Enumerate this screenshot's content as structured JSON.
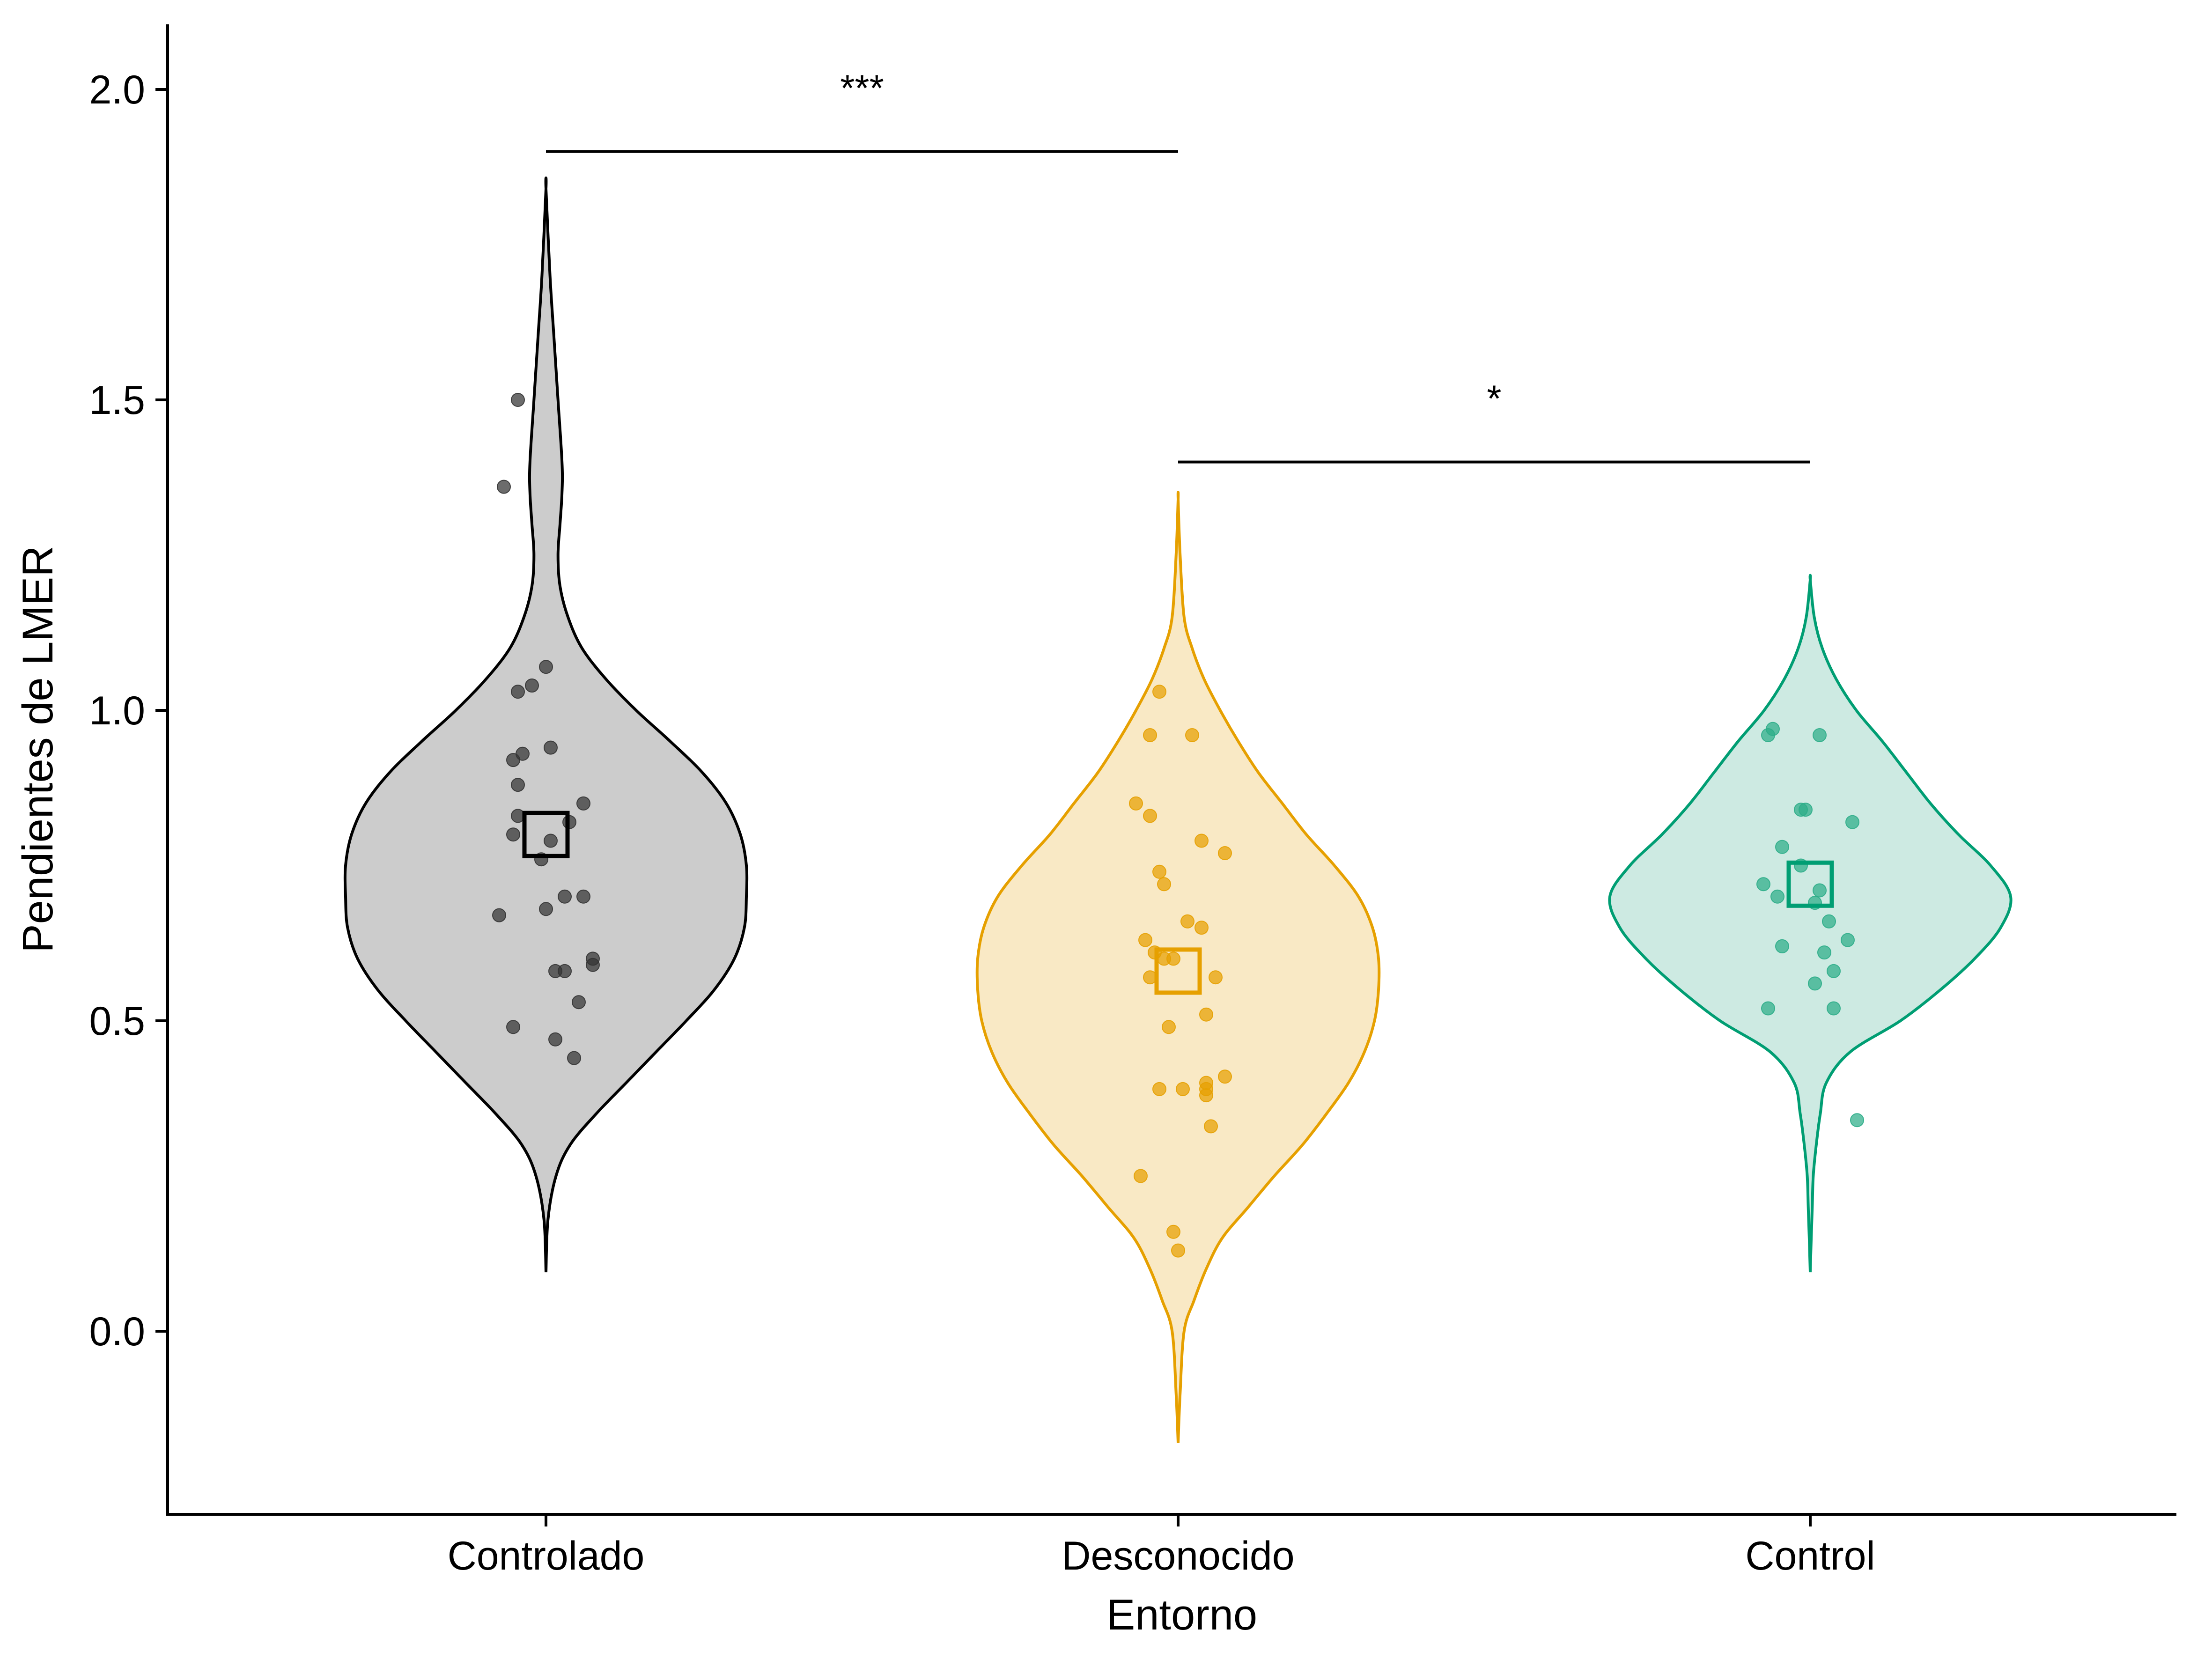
{
  "chart_data": {
    "type": "violin",
    "title": "",
    "xlabel": "Entorno",
    "ylabel": "Pendientes de LMER",
    "ylim": [
      -0.29,
      2.11
    ],
    "yticks": [
      "0.0",
      "0.5",
      "1.0",
      "1.5",
      "2.0"
    ],
    "ytick_values": [
      0.0,
      0.5,
      1.0,
      1.5,
      2.0
    ],
    "grid": false,
    "legend": "none",
    "categories": [
      "Controlado",
      "Desconocido",
      "Control"
    ],
    "series": [
      {
        "category": "Controlado",
        "line_color": "#000000",
        "fill_color": "#cccccc",
        "point_color": "#333333",
        "mean": 0.8,
        "range": [
          0.095,
          1.84
        ],
        "density_profile": [
          [
            0.095,
            0.0
          ],
          [
            0.18,
            0.01
          ],
          [
            0.25,
            0.05
          ],
          [
            0.3,
            0.12
          ],
          [
            0.35,
            0.25
          ],
          [
            0.4,
            0.4
          ],
          [
            0.45,
            0.55
          ],
          [
            0.5,
            0.7
          ],
          [
            0.55,
            0.84
          ],
          [
            0.6,
            0.94
          ],
          [
            0.65,
            0.99
          ],
          [
            0.7,
            1.0
          ],
          [
            0.75,
            1.0
          ],
          [
            0.8,
            0.97
          ],
          [
            0.85,
            0.9
          ],
          [
            0.9,
            0.78
          ],
          [
            0.95,
            0.62
          ],
          [
            1.0,
            0.45
          ],
          [
            1.05,
            0.3
          ],
          [
            1.1,
            0.18
          ],
          [
            1.15,
            0.11
          ],
          [
            1.2,
            0.07
          ],
          [
            1.25,
            0.06
          ],
          [
            1.3,
            0.07
          ],
          [
            1.35,
            0.08
          ],
          [
            1.4,
            0.08
          ],
          [
            1.5,
            0.06
          ],
          [
            1.6,
            0.04
          ],
          [
            1.7,
            0.02
          ],
          [
            1.84,
            0.0
          ]
        ],
        "points": [
          [
            0.49,
            -0.07
          ],
          [
            0.47,
            0.02
          ],
          [
            0.44,
            0.06
          ],
          [
            0.53,
            0.07
          ],
          [
            0.58,
            0.04
          ],
          [
            0.58,
            0.02
          ],
          [
            0.59,
            0.1
          ],
          [
            0.6,
            0.1
          ],
          [
            0.67,
            -0.1
          ],
          [
            0.68,
            0.0
          ],
          [
            0.7,
            0.04
          ],
          [
            0.7,
            0.08
          ],
          [
            0.76,
            -0.01
          ],
          [
            0.79,
            0.01
          ],
          [
            0.8,
            -0.07
          ],
          [
            0.82,
            0.05
          ],
          [
            0.83,
            -0.06
          ],
          [
            0.85,
            0.08
          ],
          [
            0.88,
            -0.06
          ],
          [
            0.92,
            -0.07
          ],
          [
            0.93,
            -0.05
          ],
          [
            0.94,
            0.01
          ],
          [
            1.03,
            -0.06
          ],
          [
            1.04,
            -0.03
          ],
          [
            1.07,
            0.0
          ],
          [
            1.36,
            -0.09
          ],
          [
            1.5,
            -0.06
          ]
        ]
      },
      {
        "category": "Desconocido",
        "line_color": "#e6a000",
        "fill_color": "#f9e9c5",
        "point_color": "#e6a000",
        "mean": 0.58,
        "range": [
          -0.18,
          1.34
        ],
        "density_profile": [
          [
            -0.18,
            0.0
          ],
          [
            -0.1,
            0.01
          ],
          [
            0.0,
            0.03
          ],
          [
            0.05,
            0.08
          ],
          [
            0.1,
            0.14
          ],
          [
            0.15,
            0.22
          ],
          [
            0.2,
            0.35
          ],
          [
            0.25,
            0.48
          ],
          [
            0.3,
            0.62
          ],
          [
            0.35,
            0.74
          ],
          [
            0.4,
            0.85
          ],
          [
            0.45,
            0.93
          ],
          [
            0.5,
            0.98
          ],
          [
            0.55,
            1.0
          ],
          [
            0.6,
            1.0
          ],
          [
            0.65,
            0.97
          ],
          [
            0.7,
            0.9
          ],
          [
            0.75,
            0.78
          ],
          [
            0.8,
            0.64
          ],
          [
            0.85,
            0.52
          ],
          [
            0.9,
            0.4
          ],
          [
            0.95,
            0.3
          ],
          [
            1.0,
            0.21
          ],
          [
            1.05,
            0.13
          ],
          [
            1.1,
            0.07
          ],
          [
            1.15,
            0.03
          ],
          [
            1.25,
            0.01
          ],
          [
            1.34,
            0.0
          ]
        ],
        "points": [
          [
            0.13,
            0.0
          ],
          [
            0.16,
            -0.01
          ],
          [
            0.25,
            -0.08
          ],
          [
            0.33,
            0.07
          ],
          [
            0.38,
            0.06
          ],
          [
            0.39,
            0.06
          ],
          [
            0.39,
            -0.04
          ],
          [
            0.39,
            0.01
          ],
          [
            0.4,
            0.06
          ],
          [
            0.41,
            0.1
          ],
          [
            0.49,
            -0.02
          ],
          [
            0.51,
            0.06
          ],
          [
            0.57,
            -0.06
          ],
          [
            0.57,
            0.08
          ],
          [
            0.6,
            -0.03
          ],
          [
            0.6,
            -0.01
          ],
          [
            0.61,
            -0.05
          ],
          [
            0.63,
            -0.07
          ],
          [
            0.65,
            0.05
          ],
          [
            0.66,
            0.02
          ],
          [
            0.72,
            -0.03
          ],
          [
            0.74,
            -0.04
          ],
          [
            0.77,
            0.1
          ],
          [
            0.79,
            0.05
          ],
          [
            0.83,
            -0.06
          ],
          [
            0.85,
            -0.09
          ],
          [
            0.96,
            -0.06
          ],
          [
            0.96,
            0.03
          ],
          [
            1.03,
            -0.04
          ]
        ]
      },
      {
        "category": "Control",
        "line_color": "#009e73",
        "fill_color": "#cdeae2",
        "point_color": "#2cad88",
        "mean": 0.72,
        "range": [
          0.095,
          1.21
        ],
        "density_profile": [
          [
            0.095,
            0.0
          ],
          [
            0.15,
            0.005
          ],
          [
            0.2,
            0.01
          ],
          [
            0.25,
            0.015
          ],
          [
            0.3,
            0.03
          ],
          [
            0.35,
            0.05
          ],
          [
            0.4,
            0.08
          ],
          [
            0.45,
            0.2
          ],
          [
            0.5,
            0.45
          ],
          [
            0.55,
            0.65
          ],
          [
            0.6,
            0.82
          ],
          [
            0.65,
            0.95
          ],
          [
            0.7,
            1.0
          ],
          [
            0.75,
            0.9
          ],
          [
            0.8,
            0.74
          ],
          [
            0.85,
            0.6
          ],
          [
            0.9,
            0.48
          ],
          [
            0.95,
            0.36
          ],
          [
            1.0,
            0.23
          ],
          [
            1.05,
            0.13
          ],
          [
            1.1,
            0.06
          ],
          [
            1.15,
            0.02
          ],
          [
            1.21,
            0.0
          ]
        ],
        "points": [
          [
            0.34,
            0.1
          ],
          [
            0.52,
            -0.09
          ],
          [
            0.52,
            0.05
          ],
          [
            0.56,
            0.01
          ],
          [
            0.58,
            0.05
          ],
          [
            0.61,
            0.03
          ],
          [
            0.62,
            -0.06
          ],
          [
            0.63,
            0.08
          ],
          [
            0.66,
            0.04
          ],
          [
            0.69,
            0.01
          ],
          [
            0.7,
            -0.07
          ],
          [
            0.71,
            0.02
          ],
          [
            0.72,
            -0.1
          ],
          [
            0.75,
            -0.02
          ],
          [
            0.78,
            -0.06
          ],
          [
            0.82,
            0.09
          ],
          [
            0.84,
            -0.02
          ],
          [
            0.84,
            -0.01
          ],
          [
            0.96,
            0.02
          ],
          [
            0.96,
            -0.09
          ],
          [
            0.97,
            -0.08
          ]
        ]
      }
    ],
    "annotations": [
      {
        "from": "Controlado",
        "to": "Desconocido",
        "y": 1.9,
        "label": "***"
      },
      {
        "from": "Desconocido",
        "to": "Control",
        "y": 1.4,
        "label": "*"
      }
    ]
  }
}
